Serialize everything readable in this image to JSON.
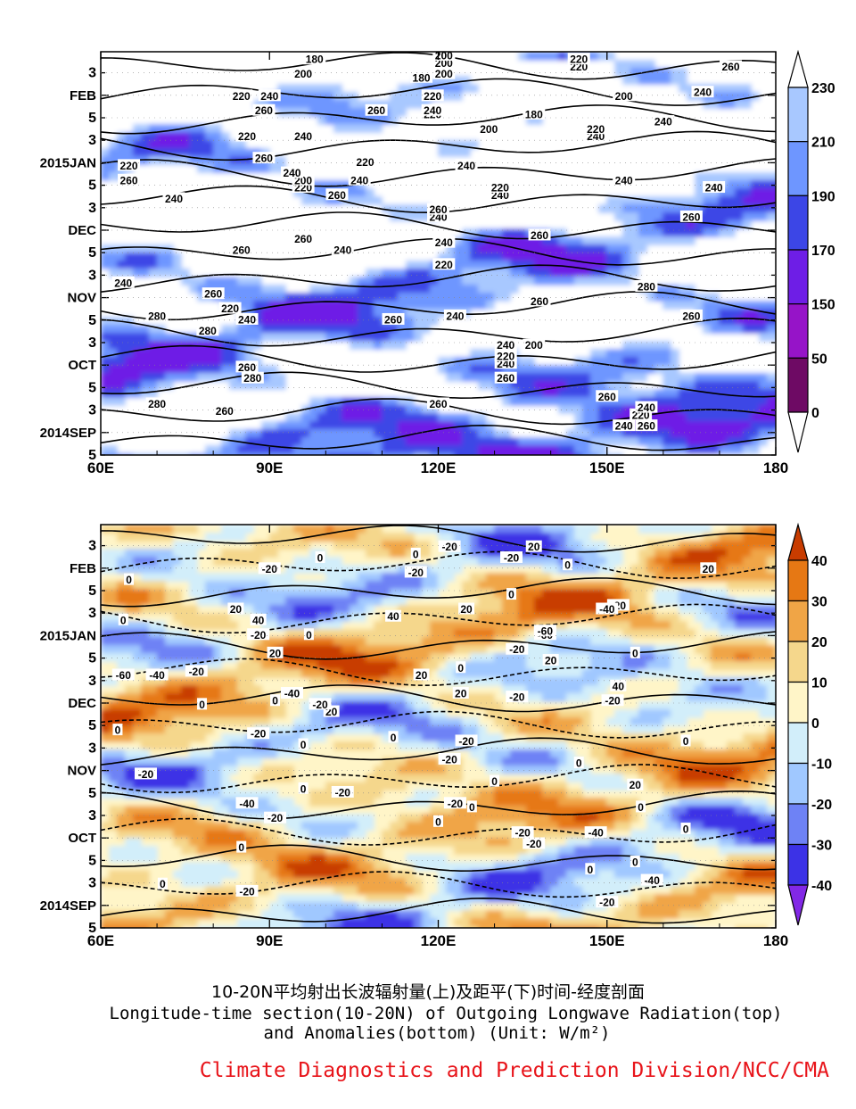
{
  "chart_data": [
    {
      "type": "heatmap",
      "name": "Outgoing Longwave Radiation (contour + shading)",
      "title": "",
      "xlabel": "",
      "ylabel": "",
      "xlim": [
        60,
        180
      ],
      "x_ticks": [
        "60E",
        "90E",
        "120E",
        "150E",
        "180"
      ],
      "y_ticks": [
        "5",
        "2014SEP",
        "3",
        "5",
        "OCT",
        "3",
        "5",
        "NOV",
        "3",
        "5",
        "DEC",
        "3",
        "5",
        "2015JAN",
        "3",
        "5",
        "FEB",
        "3"
      ],
      "colorbar": {
        "levels": [
          "230",
          "210",
          "190",
          "170",
          "150",
          "50",
          "0"
        ],
        "colors": [
          "#ffffff",
          "#a8c8ff",
          "#6e96ff",
          "#3c46e6",
          "#6e1ee6",
          "#9614c8",
          "#6e0a64",
          "#ffffff"
        ]
      },
      "contour_labels": [
        {
          "t": "260",
          "lon": 157,
          "day": 8
        },
        {
          "t": "240",
          "lon": 153,
          "day": 8
        },
        {
          "t": "280",
          "lon": 70,
          "day": 14
        },
        {
          "t": "260",
          "lon": 82,
          "day": 12
        },
        {
          "t": "260",
          "lon": 120,
          "day": 14
        },
        {
          "t": "260",
          "lon": 150,
          "day": 16
        },
        {
          "t": "220",
          "lon": 156,
          "day": 11
        },
        {
          "t": "240",
          "lon": 157,
          "day": 13
        },
        {
          "t": "280",
          "lon": 87,
          "day": 21
        },
        {
          "t": "260",
          "lon": 86,
          "day": 24
        },
        {
          "t": "260",
          "lon": 132,
          "day": 21
        },
        {
          "t": "240",
          "lon": 132,
          "day": 25
        },
        {
          "t": "220",
          "lon": 132,
          "day": 27
        },
        {
          "t": "240",
          "lon": 132,
          "day": 30
        },
        {
          "t": "200",
          "lon": 137,
          "day": 30
        },
        {
          "t": "280",
          "lon": 79,
          "day": 34
        },
        {
          "t": "240",
          "lon": 86,
          "day": 37
        },
        {
          "t": "220",
          "lon": 83,
          "day": 40
        },
        {
          "t": "280",
          "lon": 70,
          "day": 38
        },
        {
          "t": "260",
          "lon": 112,
          "day": 37
        },
        {
          "t": "240",
          "lon": 123,
          "day": 38
        },
        {
          "t": "260",
          "lon": 138,
          "day": 42
        },
        {
          "t": "260",
          "lon": 165,
          "day": 38
        },
        {
          "t": "280",
          "lon": 157,
          "day": 46
        },
        {
          "t": "240",
          "lon": 64,
          "day": 47
        },
        {
          "t": "260",
          "lon": 80,
          "day": 44
        },
        {
          "t": "220",
          "lon": 121,
          "day": 52
        },
        {
          "t": "260",
          "lon": 85,
          "day": 56
        },
        {
          "t": "240",
          "lon": 103,
          "day": 56
        },
        {
          "t": "260",
          "lon": 96,
          "day": 59
        },
        {
          "t": "240",
          "lon": 121,
          "day": 58
        },
        {
          "t": "260",
          "lon": 138,
          "day": 60
        },
        {
          "t": "240",
          "lon": 120,
          "day": 65
        },
        {
          "t": "260",
          "lon": 120,
          "day": 67
        },
        {
          "t": "260",
          "lon": 165,
          "day": 65
        },
        {
          "t": "240",
          "lon": 73,
          "day": 70
        },
        {
          "t": "260",
          "lon": 102,
          "day": 71
        },
        {
          "t": "240",
          "lon": 131,
          "day": 71
        },
        {
          "t": "220",
          "lon": 131,
          "day": 73
        },
        {
          "t": "220",
          "lon": 96,
          "day": 73
        },
        {
          "t": "200",
          "lon": 96,
          "day": 75
        },
        {
          "t": "240",
          "lon": 94,
          "day": 77
        },
        {
          "t": "240",
          "lon": 106,
          "day": 75
        },
        {
          "t": "260",
          "lon": 65,
          "day": 75
        },
        {
          "t": "240",
          "lon": 153,
          "day": 75
        },
        {
          "t": "240",
          "lon": 169,
          "day": 73
        },
        {
          "t": "220",
          "lon": 65,
          "day": 79
        },
        {
          "t": "220",
          "lon": 107,
          "day": 80
        },
        {
          "t": "240",
          "lon": 125,
          "day": 79
        },
        {
          "t": "260",
          "lon": 89,
          "day": 81
        },
        {
          "t": "220",
          "lon": 86,
          "day": 87
        },
        {
          "t": "240",
          "lon": 96,
          "day": 87
        },
        {
          "t": "200",
          "lon": 129,
          "day": 89
        },
        {
          "t": "240",
          "lon": 148,
          "day": 87
        },
        {
          "t": "220",
          "lon": 148,
          "day": 89
        },
        {
          "t": "240",
          "lon": 160,
          "day": 91
        },
        {
          "t": "260",
          "lon": 89,
          "day": 94
        },
        {
          "t": "260",
          "lon": 109,
          "day": 94
        },
        {
          "t": "220",
          "lon": 119,
          "day": 93
        },
        {
          "t": "240",
          "lon": 119,
          "day": 94
        },
        {
          "t": "180",
          "lon": 137,
          "day": 93
        },
        {
          "t": "220",
          "lon": 85,
          "day": 98
        },
        {
          "t": "240",
          "lon": 90,
          "day": 98
        },
        {
          "t": "220",
          "lon": 119,
          "day": 98
        },
        {
          "t": "200",
          "lon": 153,
          "day": 98
        },
        {
          "t": "240",
          "lon": 167,
          "day": 99
        },
        {
          "t": "180",
          "lon": 117,
          "day": 103
        },
        {
          "t": "200",
          "lon": 121,
          "day": 104
        },
        {
          "t": "200",
          "lon": 96,
          "day": 104
        },
        {
          "t": "260",
          "lon": 172,
          "day": 106
        },
        {
          "t": "220",
          "lon": 145,
          "day": 106
        },
        {
          "t": "220",
          "lon": 145,
          "day": 108
        },
        {
          "t": "200",
          "lon": 121,
          "day": 107
        },
        {
          "t": "180",
          "lon": 98,
          "day": 108
        },
        {
          "t": "200",
          "lon": 121,
          "day": 109
        }
      ]
    },
    {
      "type": "heatmap",
      "name": "OLR Anomalies (contour + shading)",
      "title": "",
      "xlabel": "",
      "ylabel": "",
      "xlim": [
        60,
        180
      ],
      "x_ticks": [
        "60E",
        "90E",
        "120E",
        "150E",
        "180"
      ],
      "y_ticks": [
        "5",
        "2014SEP",
        "3",
        "5",
        "OCT",
        "3",
        "5",
        "NOV",
        "3",
        "5",
        "DEC",
        "3",
        "5",
        "2015JAN",
        "3",
        "5",
        "FEB",
        "3"
      ],
      "colorbar": {
        "levels": [
          "40",
          "30",
          "20",
          "10",
          "0",
          "-10",
          "-20",
          "-30",
          "-40"
        ],
        "colors": [
          "#c83c00",
          "#e67814",
          "#f0a546",
          "#f5d78c",
          "#fff5c8",
          "#d2eefa",
          "#a0c8ff",
          "#6e82f5",
          "#3c32e6",
          "#8228e6"
        ]
      },
      "contour_labels": [
        {
          "t": "-20",
          "lon": 150,
          "day": 7
        },
        {
          "t": "-40",
          "lon": 158,
          "day": 13
        },
        {
          "t": "0",
          "lon": 71,
          "day": 12
        },
        {
          "t": "-20",
          "lon": 86,
          "day": 10
        },
        {
          "t": "0",
          "lon": 147,
          "day": 16
        },
        {
          "t": "0",
          "lon": 155,
          "day": 18
        },
        {
          "t": "0",
          "lon": 85,
          "day": 22
        },
        {
          "t": "-20",
          "lon": 137,
          "day": 23
        },
        {
          "t": "-20",
          "lon": 135,
          "day": 26
        },
        {
          "t": "-40",
          "lon": 148,
          "day": 26
        },
        {
          "t": "-20",
          "lon": 91,
          "day": 30
        },
        {
          "t": "-40",
          "lon": 86,
          "day": 34
        },
        {
          "t": "0",
          "lon": 120,
          "day": 29
        },
        {
          "t": "0",
          "lon": 126,
          "day": 33
        },
        {
          "t": "-20",
          "lon": 123,
          "day": 34
        },
        {
          "t": "0",
          "lon": 164,
          "day": 27
        },
        {
          "t": "0",
          "lon": 156,
          "day": 33
        },
        {
          "t": "-20",
          "lon": 103,
          "day": 37
        },
        {
          "t": "-20",
          "lon": 68,
          "day": 42
        },
        {
          "t": "0",
          "lon": 96,
          "day": 38
        },
        {
          "t": "0",
          "lon": 130,
          "day": 40
        },
        {
          "t": "20",
          "lon": 155,
          "day": 39
        },
        {
          "t": "-20",
          "lon": 122,
          "day": 46
        },
        {
          "t": "0",
          "lon": 145,
          "day": 45
        },
        {
          "t": "-20",
          "lon": 88,
          "day": 53
        },
        {
          "t": "0",
          "lon": 96,
          "day": 50
        },
        {
          "t": "0",
          "lon": 112,
          "day": 52
        },
        {
          "t": "-20",
          "lon": 125,
          "day": 51
        },
        {
          "t": "0",
          "lon": 164,
          "day": 51
        },
        {
          "t": "0",
          "lon": 63,
          "day": 54
        },
        {
          "t": "0",
          "lon": 78,
          "day": 61
        },
        {
          "t": "20",
          "lon": 101,
          "day": 59
        },
        {
          "t": "-20",
          "lon": 99,
          "day": 61
        },
        {
          "t": "-40",
          "lon": 94,
          "day": 64
        },
        {
          "t": "0",
          "lon": 91,
          "day": 62
        },
        {
          "t": "-20",
          "lon": 134,
          "day": 63
        },
        {
          "t": "-20",
          "lon": 151,
          "day": 62
        },
        {
          "t": "20",
          "lon": 124,
          "day": 64
        },
        {
          "t": "40",
          "lon": 152,
          "day": 66
        },
        {
          "t": "-60",
          "lon": 64,
          "day": 69
        },
        {
          "t": "-40",
          "lon": 70,
          "day": 69
        },
        {
          "t": "-20",
          "lon": 77,
          "day": 70
        },
        {
          "t": "20",
          "lon": 117,
          "day": 69
        },
        {
          "t": "0",
          "lon": 124,
          "day": 71
        },
        {
          "t": "20",
          "lon": 91,
          "day": 75
        },
        {
          "t": "20",
          "lon": 140,
          "day": 73
        },
        {
          "t": "-20",
          "lon": 134,
          "day": 76
        },
        {
          "t": "0",
          "lon": 155,
          "day": 75
        },
        {
          "t": "-20",
          "lon": 88,
          "day": 80
        },
        {
          "t": "-60",
          "lon": 139,
          "day": 80
        },
        {
          "t": "-60",
          "lon": 139,
          "day": 81
        },
        {
          "t": "0",
          "lon": 97,
          "day": 80
        },
        {
          "t": "0",
          "lon": 64,
          "day": 84
        },
        {
          "t": "40",
          "lon": 88,
          "day": 84
        },
        {
          "t": "40",
          "lon": 112,
          "day": 85
        },
        {
          "t": "20",
          "lon": 84,
          "day": 87
        },
        {
          "t": "20",
          "lon": 125,
          "day": 87
        },
        {
          "t": "-20",
          "lon": 152,
          "day": 88
        },
        {
          "t": "-40",
          "lon": 150,
          "day": 87
        },
        {
          "t": "0",
          "lon": 133,
          "day": 91
        },
        {
          "t": "0",
          "lon": 65,
          "day": 95
        },
        {
          "t": "-20",
          "lon": 90,
          "day": 98
        },
        {
          "t": "-20",
          "lon": 116,
          "day": 97
        },
        {
          "t": "0",
          "lon": 143,
          "day": 99
        },
        {
          "t": "20",
          "lon": 168,
          "day": 98
        },
        {
          "t": "0",
          "lon": 99,
          "day": 101
        },
        {
          "t": "-20",
          "lon": 133,
          "day": 101
        },
        {
          "t": "-20",
          "lon": 122,
          "day": 104
        },
        {
          "t": "0",
          "lon": 116,
          "day": 102
        },
        {
          "t": "20",
          "lon": 137,
          "day": 104
        }
      ]
    }
  ],
  "caption": {
    "cn": "10-20N平均射出长波辐射量(上)及距平(下)时间-经度剖面",
    "en_line1": "Longitude-time section(10-20N) of Outgoing Longwave Radiation(top)",
    "en_line2": "and Anomalies(bottom) (Unit: W/m²)"
  },
  "credit": "Climate Diagnostics and Prediction Division/NCC/CMA"
}
